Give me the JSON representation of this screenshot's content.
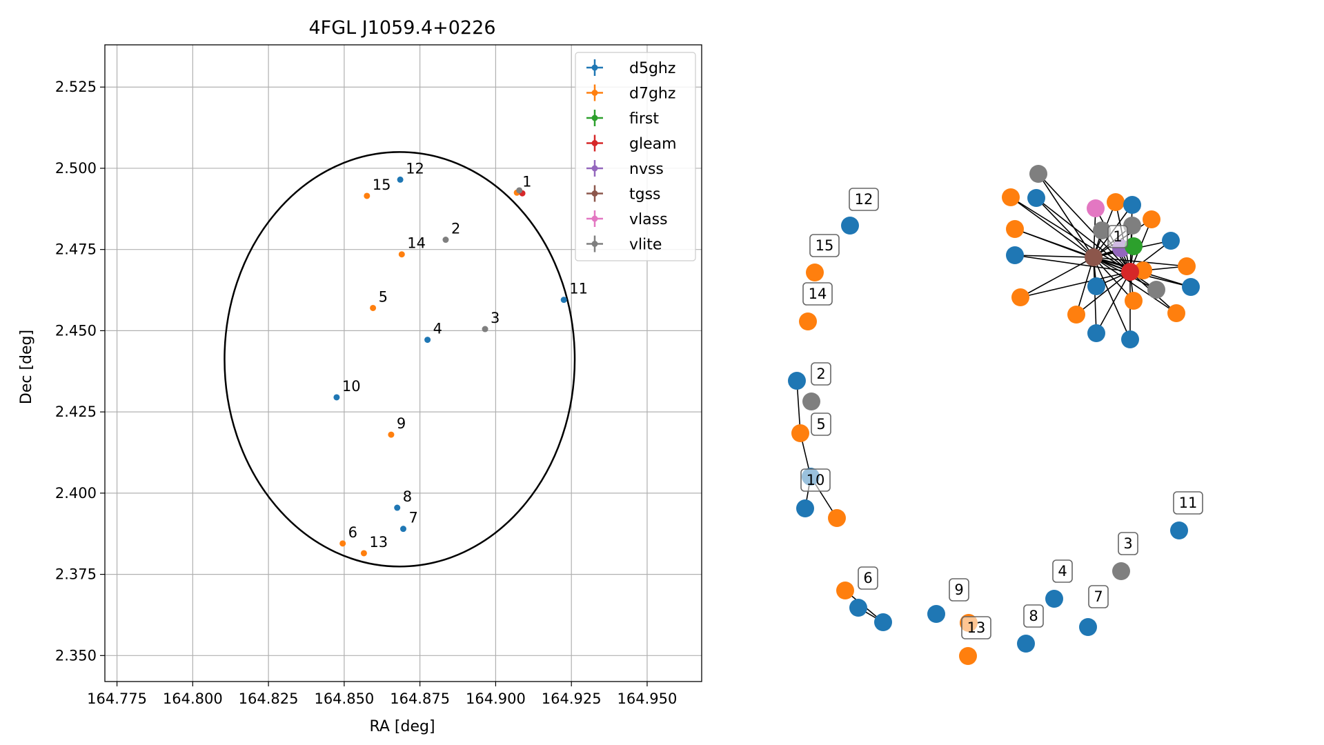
{
  "chart_data": [
    {
      "type": "scatter",
      "title": "4FGL J1059.4+0226",
      "xlabel": "RA [deg]",
      "ylabel": "Dec [deg]",
      "xlim": [
        164.771,
        164.968
      ],
      "ylim": [
        2.342,
        2.538
      ],
      "xticks": [
        "164.775",
        "164.800",
        "164.825",
        "164.850",
        "164.875",
        "164.900",
        "164.925",
        "164.950"
      ],
      "xtick_values": [
        164.775,
        164.8,
        164.825,
        164.85,
        164.875,
        164.9,
        164.925,
        164.95
      ],
      "yticks": [
        "2.350",
        "2.375",
        "2.400",
        "2.425",
        "2.450",
        "2.475",
        "2.500",
        "2.525"
      ],
      "ytick_values": [
        2.35,
        2.375,
        2.4,
        2.425,
        2.45,
        2.475,
        2.5,
        2.525
      ],
      "grid": true,
      "legend_position": "top-right",
      "legend": [
        "d5ghz",
        "d7ghz",
        "first",
        "gleam",
        "nvss",
        "tgss",
        "vlass",
        "vlite"
      ],
      "colors": {
        "d5ghz": "#1f77b4",
        "d7ghz": "#ff7f0e",
        "first": "#2ca02c",
        "gleam": "#d62728",
        "nvss": "#9467bd",
        "tgss": "#8c564b",
        "vlass": "#e377c2",
        "vlite": "#7f7f7f"
      },
      "ellipse": {
        "center_ra": 164.8683,
        "center_dec": 2.4412,
        "semi_ra": 0.0578,
        "semi_dec": 0.0638,
        "color": "#000000"
      },
      "points": [
        {
          "label": "1",
          "survey": "d7ghz",
          "ra": 164.907,
          "dec": 2.4925
        },
        {
          "label": "1",
          "survey": "gleam",
          "ra": 164.9088,
          "dec": 2.4923
        },
        {
          "label": "1",
          "survey": "vlite",
          "ra": 164.9078,
          "dec": 2.4932
        },
        {
          "label": "2",
          "survey": "vlite",
          "ra": 164.8835,
          "dec": 2.478
        },
        {
          "label": "3",
          "survey": "vlite",
          "ra": 164.8965,
          "dec": 2.4505
        },
        {
          "label": "4",
          "survey": "d5ghz",
          "ra": 164.8775,
          "dec": 2.4472
        },
        {
          "label": "5",
          "survey": "d7ghz",
          "ra": 164.8595,
          "dec": 2.457
        },
        {
          "label": "6",
          "survey": "d7ghz",
          "ra": 164.8495,
          "dec": 2.3845
        },
        {
          "label": "7",
          "survey": "d5ghz",
          "ra": 164.8695,
          "dec": 2.389
        },
        {
          "label": "8",
          "survey": "d5ghz",
          "ra": 164.8675,
          "dec": 2.3955
        },
        {
          "label": "9",
          "survey": "d7ghz",
          "ra": 164.8655,
          "dec": 2.418
        },
        {
          "label": "10",
          "survey": "d5ghz",
          "ra": 164.8475,
          "dec": 2.4295
        },
        {
          "label": "11",
          "survey": "d5ghz",
          "ra": 164.9225,
          "dec": 2.4595
        },
        {
          "label": "12",
          "survey": "d5ghz",
          "ra": 164.8685,
          "dec": 2.4965
        },
        {
          "label": "13",
          "survey": "d7ghz",
          "ra": 164.8565,
          "dec": 2.3815
        },
        {
          "label": "14",
          "survey": "d7ghz",
          "ra": 164.869,
          "dec": 2.4735
        },
        {
          "label": "15",
          "survey": "d7ghz",
          "ra": 164.8575,
          "dec": 2.4915
        }
      ]
    },
    {
      "type": "network",
      "nodes": [
        {
          "id": "c1-tgss",
          "survey": "tgss",
          "label": ""
        },
        {
          "id": "c1-vlite-a",
          "survey": "vlite",
          "label": ""
        },
        {
          "id": "c1-d7-a",
          "survey": "d7ghz",
          "label": ""
        },
        {
          "id": "c1-d5-a",
          "survey": "d5ghz",
          "label": ""
        },
        {
          "id": "c1-d7-b",
          "survey": "d7ghz",
          "label": ""
        },
        {
          "id": "c1-vlass",
          "survey": "vlass",
          "label": ""
        },
        {
          "id": "c1-d7-c",
          "survey": "d7ghz",
          "label": ""
        },
        {
          "id": "c1-d5-b",
          "survey": "d5ghz",
          "label": ""
        },
        {
          "id": "c1-vlite-b",
          "survey": "vlite",
          "label": ""
        },
        {
          "id": "c1-vlite-c",
          "survey": "vlite",
          "label": ""
        },
        {
          "id": "c1-d7-d",
          "survey": "d7ghz",
          "label": ""
        },
        {
          "id": "c1-d5-c",
          "survey": "d5ghz",
          "label": ""
        },
        {
          "id": "c1-d5-d",
          "survey": "d5ghz",
          "label": ""
        },
        {
          "id": "c1-d7-e",
          "survey": "d7ghz",
          "label": ""
        },
        {
          "id": "c1-d5-e",
          "survey": "d5ghz",
          "label": ""
        },
        {
          "id": "c1-d7-f",
          "survey": "d7ghz",
          "label": ""
        },
        {
          "id": "c1-d7-g",
          "survey": "d7ghz",
          "label": ""
        },
        {
          "id": "c1-vlite-d",
          "survey": "vlite",
          "label": ""
        },
        {
          "id": "c1-d5-f",
          "survey": "d5ghz",
          "label": ""
        },
        {
          "id": "c1-d7-h",
          "survey": "d7ghz",
          "label": ""
        },
        {
          "id": "c1-d7-i",
          "survey": "d7ghz",
          "label": ""
        },
        {
          "id": "c1-d7-j",
          "survey": "d7ghz",
          "label": ""
        },
        {
          "id": "c1-d5-g",
          "survey": "d5ghz",
          "label": ""
        },
        {
          "id": "c1-d5-h",
          "survey": "d5ghz",
          "label": ""
        },
        {
          "id": "c1-nvss",
          "survey": "nvss",
          "label": ""
        },
        {
          "id": "c1-first",
          "survey": "first",
          "label": ""
        },
        {
          "id": "c1-gleam",
          "survey": "gleam",
          "label": "1"
        },
        {
          "id": "n12",
          "survey": "d5ghz",
          "label": "12"
        },
        {
          "id": "n15",
          "survey": "d7ghz",
          "label": "15"
        },
        {
          "id": "n14",
          "survey": "d7ghz",
          "label": "14"
        },
        {
          "id": "n2a",
          "survey": "d5ghz",
          "label": ""
        },
        {
          "id": "n2",
          "survey": "vlite",
          "label": "2"
        },
        {
          "id": "n5",
          "survey": "d7ghz",
          "label": "5"
        },
        {
          "id": "n10a",
          "survey": "d5ghz",
          "label": ""
        },
        {
          "id": "n10b",
          "survey": "d5ghz",
          "label": "10"
        },
        {
          "id": "n10c",
          "survey": "d7ghz",
          "label": ""
        },
        {
          "id": "n6a",
          "survey": "d7ghz",
          "label": ""
        },
        {
          "id": "n6",
          "survey": "d5ghz",
          "label": "6"
        },
        {
          "id": "n6b",
          "survey": "d5ghz",
          "label": ""
        },
        {
          "id": "n9a",
          "survey": "d5ghz",
          "label": ""
        },
        {
          "id": "n9",
          "survey": "d7ghz",
          "label": "9"
        },
        {
          "id": "n13",
          "survey": "d7ghz",
          "label": "13"
        },
        {
          "id": "n8",
          "survey": "d5ghz",
          "label": "8"
        },
        {
          "id": "n4",
          "survey": "d5ghz",
          "label": "4"
        },
        {
          "id": "n7",
          "survey": "d5ghz",
          "label": "7"
        },
        {
          "id": "n3",
          "survey": "vlite",
          "label": "3"
        },
        {
          "id": "n11",
          "survey": "d5ghz",
          "label": "11"
        }
      ]
    }
  ]
}
